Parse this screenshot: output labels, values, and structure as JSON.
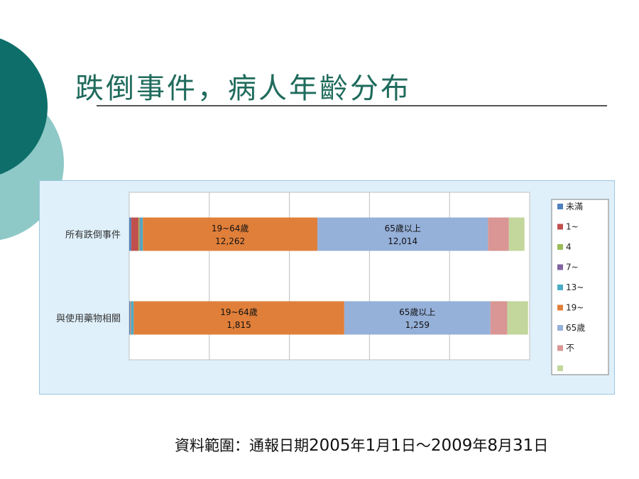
{
  "slide": {
    "title": "跌倒事件，病人年齡分布",
    "source": {
      "prefix": "資料範圍：通報日期",
      "y1": "2005",
      "c1": "年",
      "m1": "1",
      "c2": "月",
      "d1": "1",
      "c3": "日～",
      "y2": "2009",
      "c4": "年",
      "m2": "8",
      "c5": "月",
      "d2": "31",
      "c6": "日"
    }
  },
  "colors": {
    "title": "#1f6b5c",
    "panel_bg": "#dff0fb",
    "deco_dark": "#0e6e6a",
    "deco_light": "#8ec9c7"
  },
  "chart_data": {
    "type": "bar",
    "orientation": "horizontal",
    "stacked": "percent",
    "categories": [
      "所有跌倒事件",
      "與使用藥物相關"
    ],
    "xlim": [
      0,
      100
    ],
    "grid": true,
    "legend_position": "right",
    "series": [
      {
        "name": "未滿",
        "color": "#4f81bd",
        "values": [
          0.5,
          0.2
        ]
      },
      {
        "name": "1~",
        "color": "#c0504d",
        "values": [
          1.8,
          0.1
        ]
      },
      {
        "name": "4",
        "color": "#9bbb59",
        "values": [
          0.3,
          0.1
        ]
      },
      {
        "name": "7~",
        "color": "#8064a2",
        "values": [
          0.2,
          0.1
        ]
      },
      {
        "name": "13~",
        "color": "#4bacc6",
        "values": [
          0.6,
          0.6
        ]
      },
      {
        "name": "19~",
        "color": "#e07f3a",
        "values": [
          43.6,
          52.6
        ]
      },
      {
        "name": "65歲",
        "color": "#95b0d9",
        "values": [
          42.6,
          36.5
        ]
      },
      {
        "name": "不",
        "color": "#d99694",
        "values": [
          5.2,
          4.2
        ]
      },
      {
        "name": "",
        "color": "#c3d69b",
        "values": [
          3.9,
          5.2
        ]
      }
    ],
    "data_labels": [
      {
        "category": 0,
        "series": 5,
        "name": "19~64歲",
        "value": "12,262"
      },
      {
        "category": 0,
        "series": 6,
        "name": "65歲以上",
        "value": "12,014"
      },
      {
        "category": 1,
        "series": 5,
        "name": "19~64歲",
        "value": "1,815"
      },
      {
        "category": 1,
        "series": 6,
        "name": "65歲以上",
        "value": "1,259"
      }
    ]
  }
}
